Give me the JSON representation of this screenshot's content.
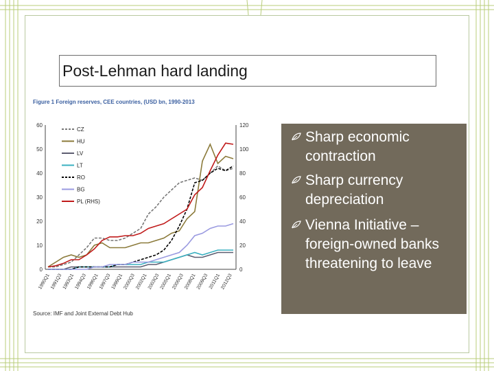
{
  "slide": {
    "title": "Post-Lehman hard landing",
    "figure_caption": "Figure 1 Foreign reserves, CEE countries, (USD bn, 1990-2013",
    "figure_source": "Source: IMF and Joint External Debt Hub"
  },
  "bullets": [
    {
      "icon": "vine-leaf-icon",
      "line1": "Sharp economic",
      "line2": "contraction"
    },
    {
      "icon": "vine-leaf-icon",
      "line1": "Sharp currency",
      "line2": "depreciation"
    },
    {
      "icon": "vine-leaf-icon",
      "line1": "Vienna Initiative –",
      "line2": "foreign-owned banks",
      "line3": "threatening to leave"
    }
  ],
  "colors": {
    "bullet_panel": "#726a5b",
    "frame_green": "#b8c9a0",
    "cz": "#777777",
    "hu": "#8b7a3a",
    "lv": "#5c5c70",
    "lt": "#3ab0c0",
    "ro": "#000000",
    "bg": "#9a9ae0",
    "pl": "#c01a1a"
  },
  "chart_data": {
    "type": "line",
    "title": "Figure 1 Foreign reserves, CEE countries, (USD bn, 1990-2013",
    "xlabel": "",
    "ylabel": "",
    "left_axis_ticks": [
      "60",
      "50",
      "40",
      "30",
      "20",
      "10",
      "0"
    ],
    "right_axis_ticks": [
      "120",
      "100",
      "80",
      "60",
      "40",
      "20",
      "0"
    ],
    "ylim_left": [
      0,
      60
    ],
    "ylim_right": [
      0,
      120
    ],
    "x_ticks": [
      "1990Q1",
      "1991Q3",
      "1993Q1",
      "1994Q3",
      "1996Q1",
      "1997Q3",
      "1999Q1",
      "2000Q3",
      "2002Q1",
      "2003Q3",
      "2005Q1",
      "2006Q3",
      "2008Q1",
      "2009Q3",
      "2011Q1",
      "2012Q3"
    ],
    "legend": [
      "CZ",
      "HU",
      "LV",
      "LT",
      "RO",
      "BG",
      "PL (RHS)"
    ],
    "legend_position": "top-left",
    "series": [
      {
        "name": "CZ",
        "axis": "left",
        "style": "dashed",
        "color": "#777777",
        "values": [
          1,
          1,
          2,
          3,
          6,
          9,
          13,
          13,
          12,
          12,
          13,
          15,
          17,
          23,
          26,
          30,
          33,
          36,
          37,
          38,
          37,
          40,
          43,
          41,
          42
        ]
      },
      {
        "name": "HU",
        "axis": "left",
        "style": "solid",
        "color": "#8b7a3a",
        "values": [
          1,
          3,
          5,
          6,
          5,
          6,
          10,
          11,
          9,
          9,
          9,
          10,
          11,
          11,
          12,
          13,
          15,
          16,
          21,
          24,
          45,
          52,
          44,
          47,
          46
        ]
      },
      {
        "name": "LV",
        "axis": "left",
        "style": "solid",
        "color": "#5c5c70",
        "values": [
          0,
          0,
          0,
          1,
          1,
          1,
          1,
          1,
          1,
          1,
          1,
          1,
          1,
          2,
          2,
          3,
          4,
          5,
          6,
          5,
          5,
          6,
          7,
          7,
          7
        ]
      },
      {
        "name": "LT",
        "axis": "left",
        "style": "solid",
        "color": "#3ab0c0",
        "values": [
          0,
          0,
          0,
          0,
          1,
          1,
          1,
          1,
          1,
          2,
          2,
          2,
          2,
          3,
          3,
          3,
          4,
          5,
          6,
          7,
          6,
          7,
          8,
          8,
          8
        ]
      },
      {
        "name": "RO",
        "axis": "left",
        "style": "dashed",
        "color": "#000000",
        "values": [
          0,
          0,
          0,
          0,
          1,
          1,
          1,
          1,
          1,
          2,
          2,
          3,
          4,
          5,
          6,
          8,
          12,
          18,
          25,
          36,
          37,
          40,
          42,
          41,
          43
        ]
      },
      {
        "name": "BG",
        "axis": "left",
        "style": "solid",
        "color": "#9a9ae0",
        "values": [
          0,
          0,
          0,
          0,
          0,
          0,
          1,
          1,
          2,
          2,
          2,
          3,
          3,
          3,
          4,
          5,
          6,
          7,
          10,
          14,
          15,
          17,
          18,
          18,
          19
        ]
      },
      {
        "name": "PL (RHS)",
        "axis": "right",
        "style": "solid",
        "color": "#c01a1a",
        "values": [
          2,
          3,
          5,
          8,
          8,
          12,
          17,
          24,
          27,
          27,
          28,
          28,
          30,
          34,
          36,
          38,
          42,
          46,
          50,
          62,
          68,
          82,
          95,
          105,
          104
        ]
      }
    ]
  }
}
